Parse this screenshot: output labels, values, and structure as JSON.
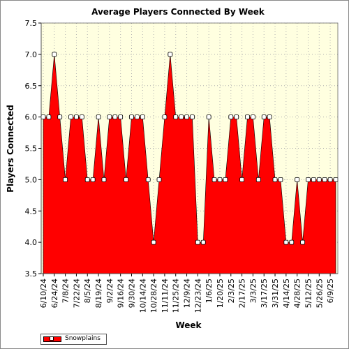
{
  "chart_data": {
    "type": "area",
    "title": "Average Players Connected By Week",
    "xlabel": "Week",
    "ylabel": "Players Connected",
    "ylim": [
      3.5,
      7.5
    ],
    "yticks": [
      "3.5",
      "4.0",
      "4.5",
      "5.0",
      "5.5",
      "6.0",
      "6.5",
      "7.0",
      "7.5"
    ],
    "xtick_labels": [
      "6/10/24",
      "6/24/24",
      "7/8/24",
      "7/22/24",
      "8/5/24",
      "8/19/24",
      "9/2/24",
      "9/16/24",
      "9/30/24",
      "10/14/24",
      "10/28/24",
      "11/11/24",
      "11/25/24",
      "12/9/24",
      "12/23/24",
      "1/6/25",
      "1/20/25",
      "2/3/25",
      "2/17/25",
      "3/3/25",
      "3/17/25",
      "3/31/25",
      "4/14/25",
      "4/28/25",
      "5/12/25",
      "5/26/25",
      "6/9/25"
    ],
    "grid": true,
    "legend_position": "bottom-left",
    "colors": {
      "plot_bg": "#ffffe0",
      "fill": "#ff0000",
      "grid": "#b0b0b0"
    },
    "series": [
      {
        "name": "Snowplains",
        "values": [
          6.0,
          6.0,
          7.0,
          6.0,
          5.0,
          6.0,
          6.0,
          6.0,
          5.0,
          5.0,
          6.0,
          5.0,
          6.0,
          6.0,
          6.0,
          5.0,
          6.0,
          6.0,
          6.0,
          5.0,
          4.0,
          5.0,
          6.0,
          7.0,
          6.0,
          6.0,
          6.0,
          6.0,
          4.0,
          4.0,
          6.0,
          5.0,
          5.0,
          5.0,
          6.0,
          6.0,
          5.0,
          6.0,
          6.0,
          5.0,
          6.0,
          6.0,
          5.0,
          5.0,
          4.0,
          4.0,
          5.0,
          4.0,
          5.0,
          5.0,
          5.0,
          5.0,
          5.0,
          5.0
        ]
      }
    ]
  }
}
